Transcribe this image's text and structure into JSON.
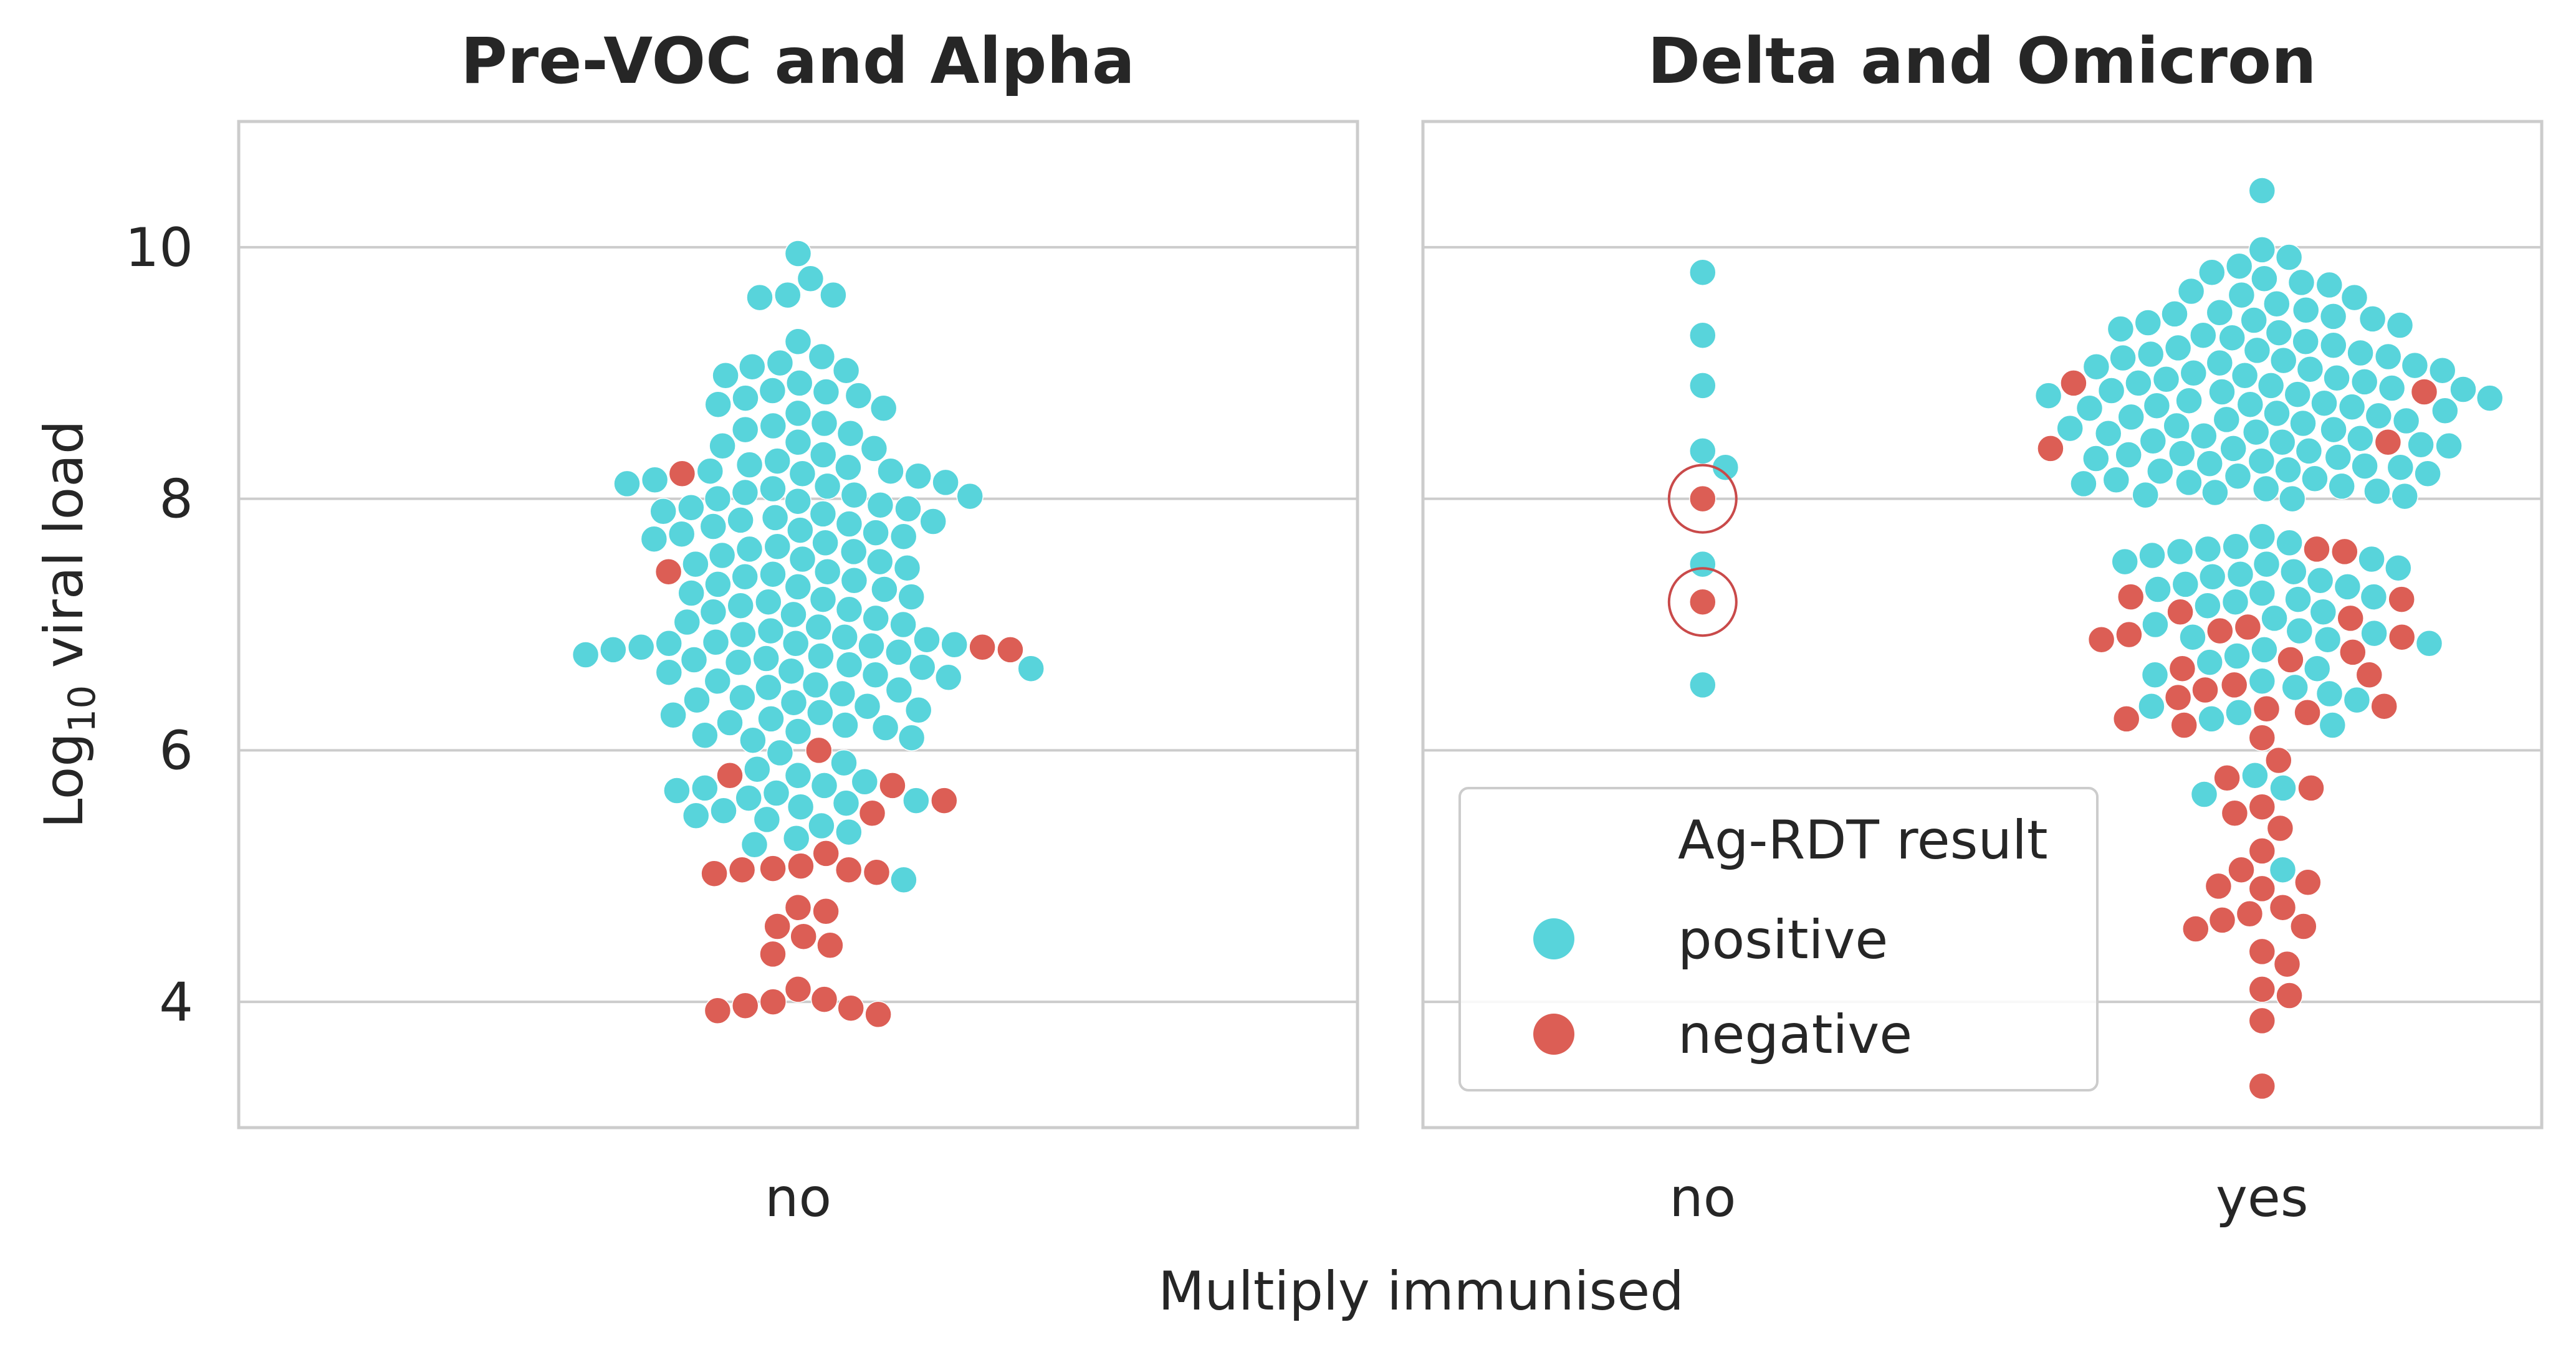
{
  "colors": {
    "positive": "#58D4DB",
    "negative": "#DC5E55",
    "highlight_ring": "#C94A4A",
    "grid": "#CCCCCC",
    "frame": "#CCCCCC",
    "text": "#262626"
  },
  "chart_data": {
    "type": "swarm",
    "shared_y": {
      "label_prefix": "Log",
      "label_subscript": "10",
      "label_suffix": " viral load",
      "ylim": [
        3.0,
        11.0
      ],
      "ticks": [
        4,
        6,
        8,
        10
      ],
      "tick_labels": [
        "4",
        "6",
        "8",
        "10"
      ],
      "grid": true
    },
    "xlabel": "Multiply immunised",
    "legend": {
      "title": "Ag-RDT result",
      "entries": [
        {
          "label": "positive",
          "color_key": "positive"
        },
        {
          "label": "negative",
          "color_key": "negative"
        }
      ],
      "placement": "lower-left of right panel"
    },
    "panels": [
      {
        "title": "Pre-VOC and Alpha",
        "categories": [
          "no"
        ],
        "groups": [
          {
            "category": "no",
            "positive": [
              9.95,
              9.75,
              9.62,
              9.6,
              9.62,
              9.25,
              9.13,
              9.08,
              9.05,
              9.02,
              8.98,
              8.92,
              8.86,
              8.85,
              8.82,
              8.8,
              8.75,
              8.72,
              8.68,
              8.6,
              8.58,
              8.55,
              8.52,
              8.45,
              8.42,
              8.4,
              8.35,
              8.3,
              8.27,
              8.25,
              8.22,
              8.22,
              8.2,
              8.18,
              8.15,
              8.13,
              8.12,
              8.1,
              8.08,
              8.05,
              8.03,
              8.02,
              8.0,
              7.98,
              7.95,
              7.93,
              7.92,
              7.9,
              7.88,
              7.85,
              7.83,
              7.82,
              7.8,
              7.78,
              7.75,
              7.73,
              7.72,
              7.7,
              7.68,
              7.65,
              7.62,
              7.6,
              7.58,
              7.55,
              7.52,
              7.5,
              7.48,
              7.45,
              7.42,
              7.4,
              7.38,
              7.35,
              7.32,
              7.3,
              7.28,
              7.25,
              7.22,
              7.2,
              7.18,
              7.15,
              7.12,
              7.1,
              7.08,
              7.05,
              7.02,
              7.0,
              6.98,
              6.95,
              6.92,
              6.9,
              6.88,
              6.86,
              6.85,
              6.85,
              6.84,
              6.83,
              6.82,
              6.8,
              6.78,
              6.76,
              6.75,
              6.73,
              6.72,
              6.7,
              6.68,
              6.66,
              6.65,
              6.63,
              6.62,
              6.6,
              6.58,
              6.55,
              6.52,
              6.5,
              6.48,
              6.45,
              6.42,
              6.4,
              6.38,
              6.35,
              6.32,
              6.3,
              6.28,
              6.25,
              6.22,
              6.2,
              6.18,
              6.15,
              6.12,
              6.1,
              6.08,
              5.98,
              5.9,
              5.85,
              5.8,
              5.75,
              5.72,
              5.7,
              5.68,
              5.66,
              5.62,
              5.6,
              5.58,
              5.55,
              5.52,
              5.48,
              5.45,
              5.4,
              5.35,
              5.3,
              5.25,
              4.97
            ],
            "negative": [
              8.2,
              7.42,
              6.82,
              6.8,
              6.0,
              5.8,
              5.72,
              5.6,
              5.5,
              5.18,
              5.08,
              5.06,
              5.05,
              5.05,
              5.03,
              5.02,
              4.75,
              4.72,
              4.6,
              4.52,
              4.45,
              4.38,
              4.1,
              4.02,
              4.0,
              3.97,
              3.95,
              3.93,
              3.9
            ]
          }
        ]
      },
      {
        "title": "Delta and Omicron",
        "categories": [
          "no",
          "yes"
        ],
        "groups": [
          {
            "category": "no",
            "positive": [
              9.8,
              9.3,
              8.9,
              8.38,
              8.25,
              7.48,
              6.52
            ],
            "negative": [
              8.0,
              7.18
            ],
            "circled_negative": [
              8.0,
              7.18
            ]
          },
          {
            "category": "yes",
            "positive": [
              10.45,
              9.98,
              9.92,
              9.85,
              9.8,
              9.75,
              9.72,
              9.7,
              9.65,
              9.62,
              9.6,
              9.55,
              9.5,
              9.48,
              9.47,
              9.45,
              9.43,
              9.42,
              9.4,
              9.38,
              9.35,
              9.32,
              9.3,
              9.28,
              9.25,
              9.22,
              9.2,
              9.18,
              9.16,
              9.15,
              9.13,
              9.12,
              9.1,
              9.08,
              9.06,
              9.05,
              9.03,
              9.02,
              9.0,
              8.98,
              8.96,
              8.95,
              8.93,
              8.92,
              8.9,
              8.88,
              8.87,
              8.86,
              8.85,
              8.83,
              8.82,
              8.8,
              8.78,
              8.76,
              8.75,
              8.74,
              8.73,
              8.72,
              8.7,
              8.68,
              8.66,
              8.65,
              8.63,
              8.62,
              8.6,
              8.58,
              8.56,
              8.55,
              8.53,
              8.52,
              8.5,
              8.48,
              8.46,
              8.45,
              8.43,
              8.42,
              8.4,
              8.38,
              8.36,
              8.35,
              8.33,
              8.32,
              8.3,
              8.28,
              8.26,
              8.25,
              8.23,
              8.22,
              8.2,
              8.18,
              8.16,
              8.15,
              8.13,
              8.12,
              8.1,
              8.08,
              8.06,
              8.05,
              8.03,
              8.02,
              8.0,
              7.7,
              7.65,
              7.62,
              7.6,
              7.58,
              7.55,
              7.52,
              7.5,
              7.48,
              7.45,
              7.42,
              7.4,
              7.38,
              7.35,
              7.32,
              7.3,
              7.28,
              7.25,
              7.22,
              7.2,
              7.18,
              7.15,
              7.1,
              7.05,
              7.0,
              6.95,
              6.93,
              6.9,
              6.88,
              6.85,
              6.8,
              6.75,
              6.7,
              6.65,
              6.6,
              6.55,
              6.5,
              6.45,
              6.4,
              6.35,
              6.3,
              6.25,
              6.2,
              5.8,
              5.7,
              5.65,
              5.05
            ],
            "negative": [
              8.92,
              8.85,
              8.45,
              8.4,
              7.6,
              7.58,
              7.22,
              7.2,
              7.1,
              7.05,
              6.98,
              6.95,
              6.92,
              6.9,
              6.88,
              6.78,
              6.72,
              6.65,
              6.6,
              6.52,
              6.48,
              6.42,
              6.35,
              6.33,
              6.3,
              6.25,
              6.2,
              6.1,
              5.92,
              5.78,
              5.7,
              5.55,
              5.5,
              5.38,
              5.2,
              5.05,
              4.95,
              4.92,
              4.9,
              4.75,
              4.7,
              4.65,
              4.6,
              4.58,
              4.4,
              4.3,
              4.1,
              4.05,
              3.85,
              3.33
            ]
          }
        ]
      }
    ]
  }
}
